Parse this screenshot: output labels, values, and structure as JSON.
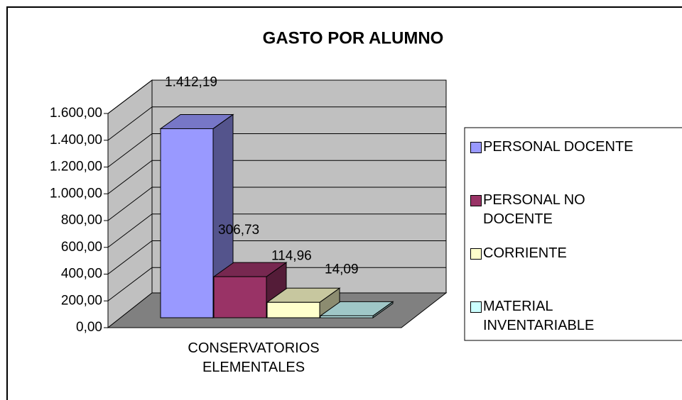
{
  "chart_data": {
    "type": "bar3d",
    "title": "GASTO POR ALUMNO",
    "categories": [
      "CONSERVATORIOS ELEMENTALES"
    ],
    "series": [
      {
        "name": "PERSONAL DOCENTE",
        "color": "#9999FF",
        "values": [
          1412.19
        ],
        "value_labels": [
          "1.412,19"
        ]
      },
      {
        "name": "PERSONAL NO DOCENTE",
        "color": "#993366",
        "values": [
          306.73
        ],
        "value_labels": [
          "306,73"
        ]
      },
      {
        "name": "CORRIENTE",
        "color": "#FFFFCC",
        "values": [
          114.96
        ],
        "value_labels": [
          "114,96"
        ]
      },
      {
        "name": "MATERIAL INVENTARIABLE",
        "color": "#CCFFFF",
        "values": [
          14.09
        ],
        "value_labels": [
          "14,09"
        ]
      }
    ],
    "ylim": [
      0,
      1600
    ],
    "yticks": [
      {
        "value": 0,
        "label": "0,00"
      },
      {
        "value": 200,
        "label": "200,00"
      },
      {
        "value": 400,
        "label": "400,00"
      },
      {
        "value": 600,
        "label": "600,00"
      },
      {
        "value": 800,
        "label": "800,00"
      },
      {
        "value": 1000,
        "label": "1.000,00"
      },
      {
        "value": 1200,
        "label": "1.200,00"
      },
      {
        "value": 1400,
        "label": "1.400,00"
      },
      {
        "value": 1600,
        "label": "1.600,00"
      }
    ],
    "grid": true,
    "legend": "right"
  }
}
